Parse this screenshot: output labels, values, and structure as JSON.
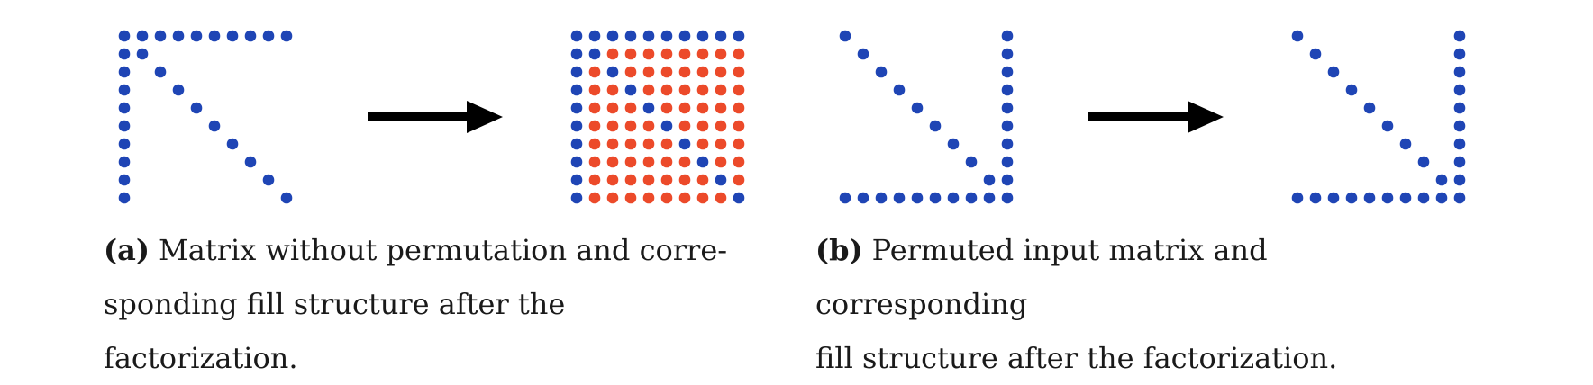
{
  "colors": {
    "nonzero": "#1f45b5",
    "fill": "#ec4a2a",
    "arrow": "#000000"
  },
  "panel_a": {
    "label": "(a)",
    "caption_line1": "Matrix without permutation and corre-",
    "caption_line2": "sponding fill structure after the factorization.",
    "input_matrix": "arrowhead-upper-left",
    "factor_matrix": "dense-fill"
  },
  "panel_b": {
    "label": "(b)",
    "caption_line1": "Permuted input matrix and corresponding",
    "caption_line2": "fill structure after the factorization.",
    "input_matrix": "arrowhead-lower-right",
    "factor_matrix": "arrowhead-lower-right-no-fill"
  }
}
